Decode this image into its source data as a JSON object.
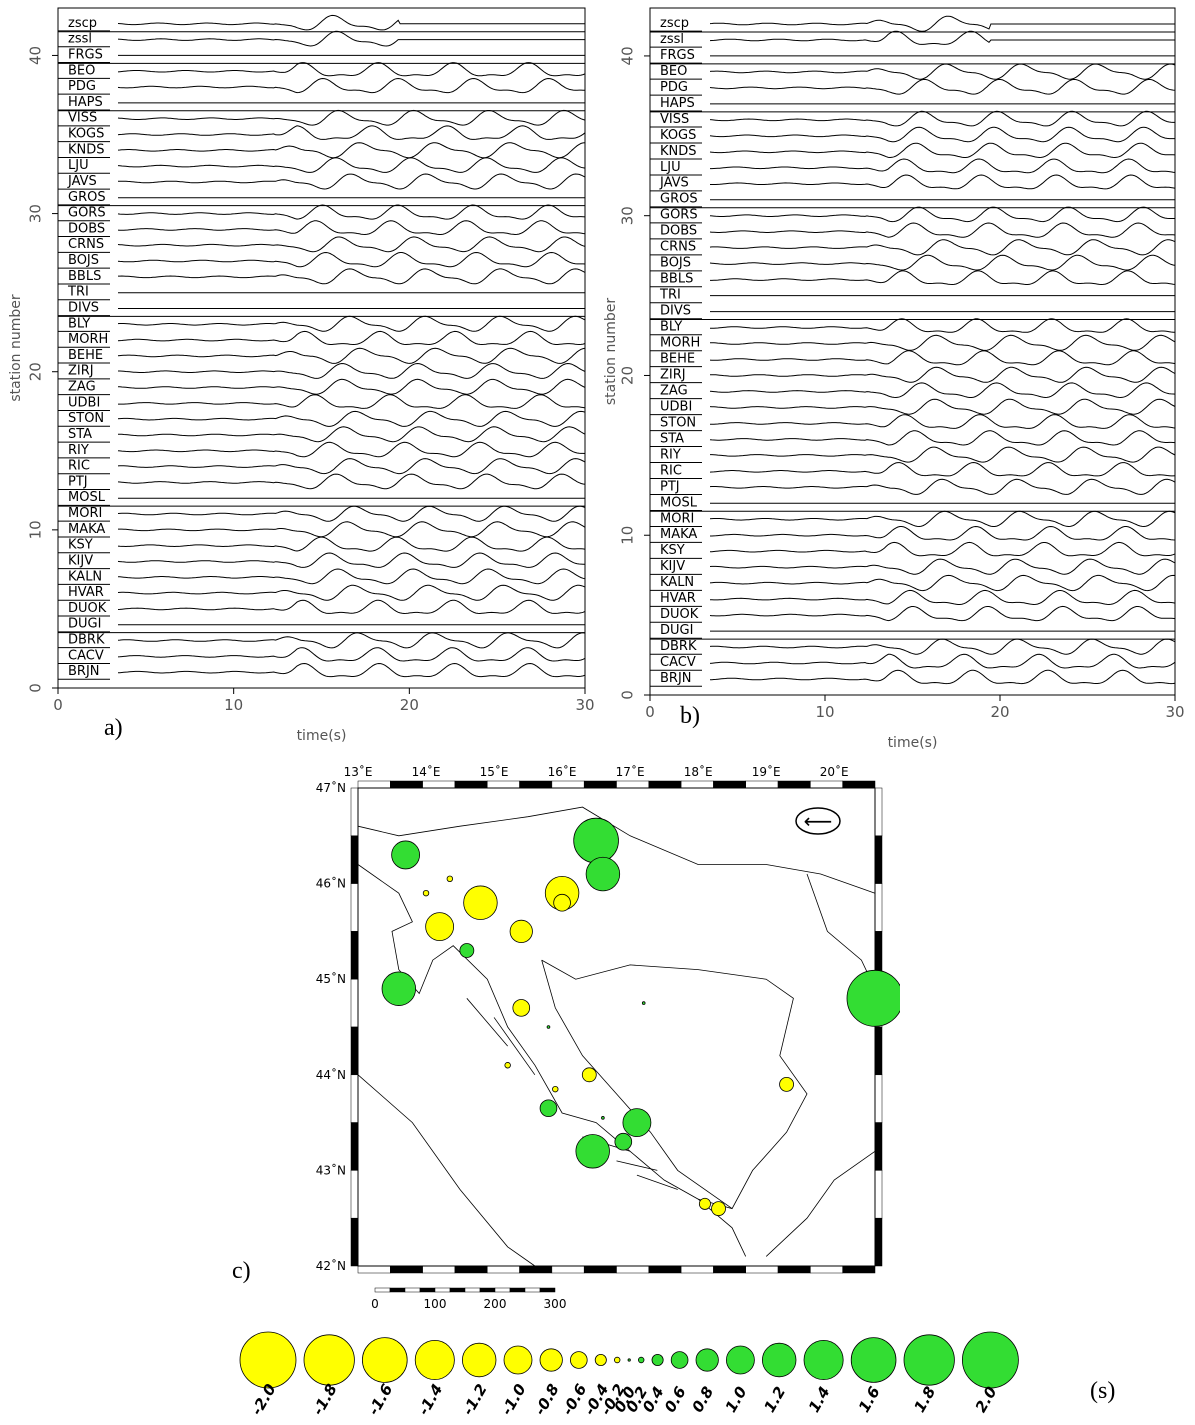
{
  "panels": [
    {
      "id": "a",
      "label": "a)"
    },
    {
      "id": "b",
      "label": "b)"
    },
    {
      "id": "c",
      "label": "c)"
    }
  ],
  "seismograms": {
    "xlabel": "time(s)",
    "ylabel": "station number",
    "xticks": [
      0,
      10,
      20,
      30
    ],
    "yticks": [
      0,
      10,
      20,
      30,
      40
    ],
    "xlim": [
      0,
      30
    ],
    "ylim": [
      0,
      43
    ],
    "stations": [
      "BRJN",
      "CACV",
      "DBRK",
      "DUGI",
      "DUOK",
      "HVAR",
      "KALN",
      "KIJV",
      "KSY",
      "MAKA",
      "MORI",
      "MOSL",
      "PTJ",
      "RIC",
      "RIY",
      "STA",
      "STON",
      "UDBI",
      "ZAG",
      "ZIRJ",
      "BEHE",
      "MORH",
      "BLY",
      "DIVS",
      "TRI",
      "BBLS",
      "BOJS",
      "CRNS",
      "DOBS",
      "GORS",
      "GROS",
      "JAVS",
      "LJU",
      "KNDS",
      "KOGS",
      "VISS",
      "HAPS",
      "PDG",
      "BEO",
      "FRGS",
      "zssl",
      "zscp"
    ]
  },
  "map": {
    "lon_labels": [
      "13˚E",
      "14˚E",
      "15˚E",
      "16˚E",
      "17˚E",
      "18˚E",
      "19˚E",
      "20˚E"
    ],
    "lat_labels": [
      "47˚N",
      "46˚N",
      "45˚N",
      "44˚N",
      "43˚N",
      "42˚N"
    ],
    "lon_range": [
      13,
      20.6
    ],
    "lat_range": [
      42,
      47
    ],
    "scale_ticks": [
      "0",
      "100",
      "200",
      "300"
    ],
    "arrow_symbol": "⟵",
    "colors": {
      "negative": "#ffff00",
      "positive": "#33dd33",
      "outline": "#000000"
    },
    "chart_data": {
      "type": "scatter",
      "x_label": "",
      "y_label": "",
      "points": [
        {
          "lon": 13.7,
          "lat": 46.3,
          "value": 1.0
        },
        {
          "lon": 14.0,
          "lat": 45.9,
          "value": -0.2
        },
        {
          "lon": 14.35,
          "lat": 46.05,
          "value": -0.2
        },
        {
          "lon": 14.8,
          "lat": 45.8,
          "value": -1.2
        },
        {
          "lon": 14.2,
          "lat": 45.55,
          "value": -1.0
        },
        {
          "lon": 14.6,
          "lat": 45.3,
          "value": 0.5
        },
        {
          "lon": 15.4,
          "lat": 45.5,
          "value": -0.8
        },
        {
          "lon": 16.0,
          "lat": 45.9,
          "value": -1.2
        },
        {
          "lon": 16.0,
          "lat": 45.8,
          "value": -0.6
        },
        {
          "lon": 16.5,
          "lat": 46.45,
          "value": 1.6
        },
        {
          "lon": 16.6,
          "lat": 46.1,
          "value": 1.2
        },
        {
          "lon": 13.6,
          "lat": 44.9,
          "value": 1.2
        },
        {
          "lon": 15.4,
          "lat": 44.7,
          "value": -0.6
        },
        {
          "lon": 17.2,
          "lat": 44.75,
          "value": 0.1
        },
        {
          "lon": 15.8,
          "lat": 44.5,
          "value": 0.1
        },
        {
          "lon": 15.2,
          "lat": 44.1,
          "value": -0.2
        },
        {
          "lon": 15.9,
          "lat": 43.85,
          "value": -0.2
        },
        {
          "lon": 16.4,
          "lat": 44.0,
          "value": -0.5
        },
        {
          "lon": 15.8,
          "lat": 43.65,
          "value": 0.6
        },
        {
          "lon": 16.6,
          "lat": 43.55,
          "value": 0.1
        },
        {
          "lon": 17.1,
          "lat": 43.5,
          "value": 1.0
        },
        {
          "lon": 16.9,
          "lat": 43.3,
          "value": 0.6
        },
        {
          "lon": 16.45,
          "lat": 43.2,
          "value": 1.2
        },
        {
          "lon": 18.1,
          "lat": 42.65,
          "value": -0.4
        },
        {
          "lon": 18.3,
          "lat": 42.6,
          "value": -0.5
        },
        {
          "lon": 19.3,
          "lat": 43.9,
          "value": -0.5
        },
        {
          "lon": 20.6,
          "lat": 44.8,
          "value": 2.0
        }
      ]
    }
  },
  "legend": {
    "values": [
      "-2.0",
      "-1.8",
      "-1.6",
      "-1.4",
      "-1.2",
      "-1.0",
      "-0.8",
      "-0.6",
      "-0.4",
      "-0.2",
      "0.0",
      "0.2",
      "0.4",
      "0.6",
      "0.8",
      "1.0",
      "1.2",
      "1.4",
      "1.6",
      "1.8",
      "2.0"
    ],
    "unit": "(s)"
  }
}
